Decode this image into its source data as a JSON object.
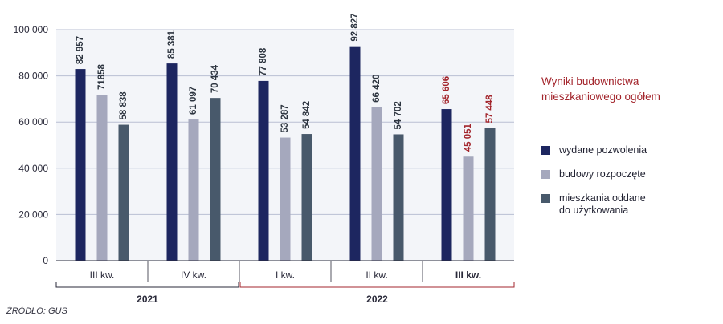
{
  "chart_data": {
    "type": "bar",
    "title": "Wyniki budownictwa mieszkaniowego ogółem",
    "categories": [
      "III kw.",
      "IV kw.",
      "I kw.",
      "II kw.",
      "III kw."
    ],
    "years": [
      {
        "label": "2021",
        "span": [
          0,
          1
        ]
      },
      {
        "label": "2022",
        "span": [
          2,
          4
        ]
      }
    ],
    "highlight_category_index": 4,
    "series": [
      {
        "name": "wydane pozwolenia",
        "color": "#1d2660",
        "values": [
          82957,
          85381,
          77808,
          92827,
          65606
        ],
        "labels": [
          "82 957",
          "85 381",
          "77 808",
          "92 827",
          "65 606"
        ]
      },
      {
        "name": "budowy rozpoczęte",
        "color": "#a5a8bd",
        "values": [
          71858,
          61097,
          53287,
          66420,
          45051
        ],
        "labels": [
          "71858",
          "61 097",
          "53 287",
          "66 420",
          "45 051"
        ]
      },
      {
        "name": "mieszkania oddane do użytkowania",
        "name_lines": [
          "mieszkania oddane",
          "do użytkowania"
        ],
        "color": "#48596b",
        "values": [
          58838,
          70434,
          54842,
          54702,
          57448
        ],
        "labels": [
          "58 838",
          "70 434",
          "54 842",
          "54 702",
          "57 448"
        ]
      }
    ],
    "yticks": [
      0,
      20000,
      40000,
      60000,
      80000,
      100000
    ],
    "ytick_labels": [
      "0",
      "20 000",
      "40 000",
      "60 000",
      "80 000",
      "100 000"
    ],
    "ylim": [
      0,
      100000
    ],
    "grid": true,
    "legend_position": "right",
    "xlabel": "",
    "ylabel": ""
  },
  "colors": {
    "title": "#a3252c",
    "highlight": "#a3252c",
    "axis": "#2a2a3a",
    "grid": "#b9bfd3",
    "panel": "#f3f5f9"
  },
  "source": "ŹRÓDŁO: GUS"
}
